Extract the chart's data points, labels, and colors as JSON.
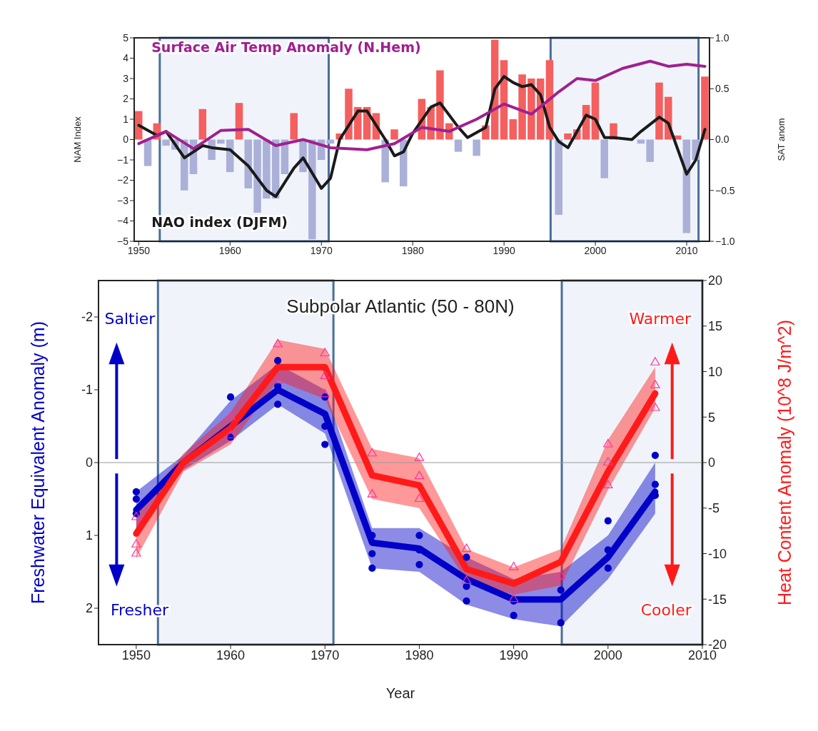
{
  "chart_data": [
    {
      "type": "bar",
      "ylabel": "NAM Index",
      "y2label": "SAT anom",
      "xlim": [
        1949.5,
        2012.5
      ],
      "xticks": [
        1950,
        1960,
        1970,
        1980,
        1990,
        2000,
        2010
      ],
      "ylim": [
        -5,
        5
      ],
      "yticks": [
        {
          "value": -5,
          "label": "−5"
        },
        {
          "value": -4,
          "label": "−4"
        },
        {
          "value": -3,
          "label": "−3"
        },
        {
          "value": -2,
          "label": "−2"
        },
        {
          "value": -1,
          "label": "−1"
        },
        0,
        1,
        2,
        3,
        4,
        5
      ],
      "y2lim": [
        -1,
        1
      ],
      "y2ticks": [
        {
          "value": -1,
          "label": "−1.0"
        },
        {
          "value": -0.5,
          "label": "−0.5"
        },
        {
          "value": 0,
          "label": "0.0"
        },
        {
          "value": 0.5,
          "label": "0.5"
        },
        {
          "value": 1,
          "label": "1.0"
        }
      ],
      "bands": [
        {
          "axis": "x",
          "from": 1952.3,
          "to": 1970.8,
          "color": "#e6edf6"
        },
        {
          "axis": "x",
          "from": 1995.1,
          "to": 2011.3,
          "color": "#e6edf6"
        }
      ],
      "series": [
        {
          "x": [
            1950,
            1951,
            1952,
            1953,
            1954,
            1955,
            1956,
            1957,
            1958,
            1959,
            1960,
            1961,
            1962,
            1963,
            1964,
            1965,
            1966,
            1967,
            1968,
            1969,
            1970,
            1971,
            1972,
            1973,
            1974,
            1975,
            1976,
            1977,
            1978,
            1979,
            1980,
            1981,
            1982,
            1983,
            1984,
            1985,
            1986,
            1987,
            1988,
            1989,
            1990,
            1991,
            1992,
            1993,
            1994,
            1995,
            1996,
            1997,
            1998,
            1999,
            2000,
            2001,
            2002,
            2003,
            2004,
            2005,
            2006,
            2007,
            2008,
            2009,
            2010,
            2011,
            2012
          ],
          "values": [
            1.4,
            -1.3,
            0.8,
            -0.3,
            -0.5,
            -2.5,
            -1.7,
            1.5,
            -1.0,
            -0.2,
            -1.6,
            1.8,
            -2.4,
            -3.6,
            -2.9,
            -2.9,
            -1.7,
            1.3,
            -1.6,
            -4.9,
            -1.0,
            -0.2,
            0.3,
            2.5,
            1.6,
            1.6,
            1.3,
            -2.1,
            0.5,
            -2.3,
            null,
            2.0,
            1.6,
            3.4,
            0.8,
            -0.6,
            null,
            -0.8,
            0.7,
            4.9,
            3.9,
            1.0,
            3.2,
            3.0,
            3.0,
            3.9,
            -3.7,
            0.3,
            0.5,
            1.7,
            2.8,
            -1.9,
            0.8,
            null,
            null,
            -0.2,
            -1.1,
            2.8,
            2.1,
            0.2,
            -4.6,
            -1.0,
            3.1
          ],
          "colors": [
            "#f45f5f",
            "#aab0d8",
            "#f45f5f",
            "#aab0d8",
            "#aab0d8",
            "#aab0d8",
            "#aab0d8",
            "#f45f5f",
            "#aab0d8",
            "#aab0d8",
            "#aab0d8",
            "#f45f5f",
            "#aab0d8",
            "#aab0d8",
            "#aab0d8",
            "#aab0d8",
            "#aab0d8",
            "#f45f5f",
            "#aab0d8",
            "#aab0d8",
            "#aab0d8",
            "#aab0d8",
            "#f45f5f",
            "#f45f5f",
            "#f45f5f",
            "#f45f5f",
            "#f45f5f",
            "#aab0d8",
            "#f45f5f",
            "#aab0d8",
            "#f45f5f",
            "#f45f5f",
            "#f45f5f",
            "#f45f5f",
            "#f45f5f",
            "#aab0d8",
            "#f45f5f",
            "#aab0d8",
            "#f45f5f",
            "#f45f5f",
            "#f45f5f",
            "#f45f5f",
            "#f45f5f",
            "#f45f5f",
            "#f45f5f",
            "#f45f5f",
            "#aab0d8",
            "#f45f5f",
            "#f45f5f",
            "#f45f5f",
            "#f45f5f",
            "#aab0d8",
            "#f45f5f",
            "#f45f5f",
            "#f45f5f",
            "#aab0d8",
            "#aab0d8",
            "#f45f5f",
            "#f45f5f",
            "#f45f5f",
            "#aab0d8",
            "#aab0d8",
            "#f45f5f"
          ]
        },
        {
          "type": "line",
          "name": "NAO index (DJFM)",
          "color": "#1a1a1a",
          "x": [
            1950,
            1952,
            1953,
            1955,
            1957,
            1958,
            1960,
            1962,
            1964,
            1965,
            1967,
            1968,
            1970,
            1971,
            1972,
            1974,
            1975,
            1977,
            1978,
            1979,
            1980,
            1982,
            1983,
            1985,
            1986,
            1988,
            1989,
            1990,
            1991,
            1992,
            1993,
            1994,
            1995,
            1996,
            1997,
            1999,
            2000,
            2001,
            2002,
            2004,
            2005,
            2007,
            2008,
            2010,
            2011,
            2012
          ],
          "values": [
            0.7,
            0.2,
            0.4,
            -0.9,
            -0.3,
            -0.4,
            -0.5,
            -1.3,
            -2.5,
            -2.8,
            -1.4,
            -0.9,
            -2.4,
            -1.9,
            0,
            1.4,
            1.4,
            0,
            -0.8,
            -0.6,
            0.3,
            1.6,
            1.8,
            0.6,
            0.1,
            0.6,
            2.5,
            3.1,
            2.8,
            2.6,
            2.7,
            2.2,
            0.6,
            -0.1,
            -0.4,
            1.2,
            1.0,
            0.1,
            0.1,
            0,
            0.4,
            1.1,
            0.8,
            -1.7,
            -1.0,
            0.5
          ]
        },
        {
          "type": "line",
          "name": "Surface Air Temp Anomaly (N.Hem)",
          "color": "#a0208f",
          "axis": "y2",
          "x": [
            1950,
            1953,
            1956,
            1959,
            1962,
            1965,
            1968,
            1971,
            1975,
            1978,
            1981,
            1984,
            1987,
            1990,
            1993,
            1996,
            1998,
            2000,
            2003,
            2006,
            2008,
            2010,
            2012
          ],
          "values": [
            -0.04,
            0.08,
            -0.09,
            0.09,
            0.1,
            -0.06,
            0,
            -0.08,
            -0.1,
            -0.04,
            0.12,
            0.08,
            0.2,
            0.35,
            0.25,
            0.47,
            0.6,
            0.58,
            0.7,
            0.77,
            0.72,
            0.74,
            0.72
          ]
        }
      ]
    },
    {
      "type": "line",
      "title": "Subpolar Atlantic (50 - 80N)",
      "xlabel": "Year",
      "ylabel": "Freshwater Equivalent Anomaly (m)",
      "y2label": "Heat Content Anomaly (10^8 J/m^2)",
      "xlim": [
        1946,
        2010
      ],
      "xticks": [
        1950,
        1960,
        1970,
        1980,
        1990,
        2000,
        2010
      ],
      "ylim": [
        2.5,
        -2.5
      ],
      "yticks": [
        -2,
        -1,
        0,
        1,
        2
      ],
      "y2lim": [
        -20,
        20
      ],
      "y2ticks": [
        -20,
        -15,
        -10,
        -5,
        0,
        5,
        10,
        15,
        20
      ],
      "ref_lines": [
        {
          "axis": "y",
          "value": 0,
          "color": "#999999"
        }
      ],
      "bands": [
        {
          "axis": "x",
          "from": 1952.3,
          "to": 1970.9,
          "color": "#e6edf6"
        },
        {
          "axis": "x",
          "from": 1995.1,
          "to": 2010,
          "color": "#e6edf6"
        }
      ],
      "annotations": [
        "Saltier",
        "Fresher",
        "Warmer",
        "Cooler"
      ],
      "series": [
        {
          "color": "#0000c8",
          "x": [
            1950,
            1955,
            1960,
            1965,
            1970,
            1975,
            1980,
            1985,
            1990,
            1995,
            2000,
            2005
          ],
          "values": [
            0.65,
            0,
            -0.5,
            -1.0,
            -0.67,
            1.1,
            1.18,
            1.6,
            1.88,
            1.88,
            1.3,
            0.4
          ],
          "lower": [
            0.4,
            -0.1,
            -0.85,
            -1.35,
            -1.0,
            0.9,
            0.9,
            1.3,
            1.6,
            1.5,
            1.0,
            0.0
          ],
          "upper": [
            0.9,
            0.1,
            -0.3,
            -0.8,
            -0.4,
            1.45,
            1.5,
            1.95,
            2.15,
            2.25,
            1.6,
            0.7
          ]
        },
        {
          "color": "#ff1a1a",
          "axis": "y2",
          "x": [
            1950,
            1955,
            1960,
            1965,
            1970,
            1975,
            1980,
            1985,
            1990,
            1995,
            2000,
            2005
          ],
          "values": [
            -7.8,
            0,
            3.8,
            10.5,
            10.5,
            -1.4,
            -2.5,
            -11.7,
            -13.3,
            -10.9,
            -1,
            7.6
          ],
          "lower": [
            -10.5,
            -1,
            2,
            9,
            7,
            -4,
            -5,
            -13,
            -14.5,
            -13.5,
            -3,
            6
          ],
          "upper": [
            -5.5,
            1,
            5.5,
            13.5,
            12.5,
            1.5,
            0.5,
            -9.5,
            -11.5,
            -9.5,
            2.5,
            10.5
          ]
        },
        {
          "type": "scatter",
          "color": "#0000c8",
          "marker": "circle",
          "x": [
            1950,
            1950,
            1950,
            1960,
            1960,
            1965,
            1965,
            1965,
            1970,
            1970,
            1970,
            1975,
            1975,
            1975,
            1980,
            1980,
            1980,
            1985,
            1985,
            1985,
            1990,
            1990,
            1995,
            1995,
            2000,
            2000,
            2000,
            2005,
            2005,
            2005
          ],
          "values": [
            0.4,
            0.5,
            0.7,
            -0.9,
            -0.35,
            -1.4,
            -1.05,
            -0.8,
            -0.9,
            -0.5,
            -0.25,
            1.0,
            1.25,
            1.45,
            1.0,
            1.2,
            1.4,
            1.3,
            1.7,
            1.9,
            1.9,
            2.1,
            1.75,
            2.2,
            0.8,
            1.2,
            1.45,
            -0.1,
            0.3,
            0.45
          ]
        },
        {
          "type": "scatter",
          "color": "#ff3399",
          "marker": "triangle",
          "axis": "y2",
          "x": [
            1950,
            1950,
            1950,
            1960,
            1960,
            1965,
            1965,
            1970,
            1970,
            1970,
            1975,
            1975,
            1980,
            1980,
            1980,
            1985,
            1985,
            1990,
            1990,
            1995,
            2000,
            2000,
            2000,
            2005,
            2005,
            2005
          ],
          "values": [
            -6,
            -9,
            -10,
            5,
            3,
            13,
            9,
            12,
            9.5,
            7.5,
            1,
            -3.5,
            0.5,
            -1.5,
            -4,
            -9.5,
            -13,
            -11.5,
            -15,
            -12.5,
            2,
            0,
            -2.5,
            11,
            8.5,
            6
          ]
        }
      ]
    }
  ]
}
